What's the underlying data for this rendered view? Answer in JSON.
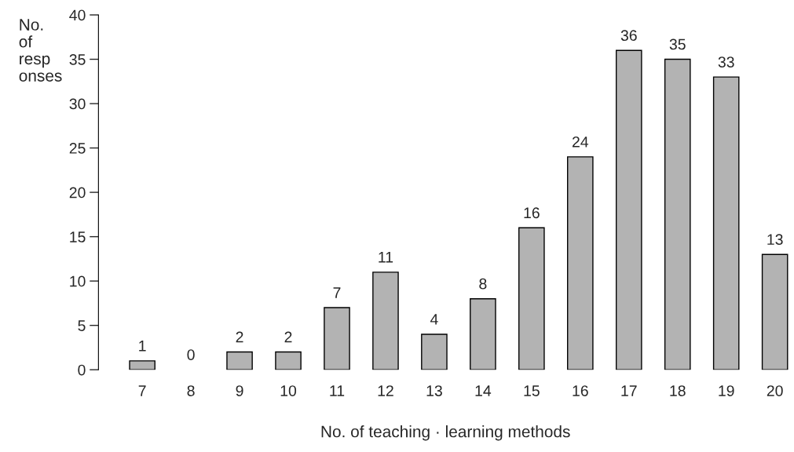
{
  "chart_data": {
    "type": "bar",
    "xlabel": "No. of teaching · learning methods",
    "ylabel": "No.\nof\nresp\nonses",
    "categories": [
      "7",
      "8",
      "9",
      "10",
      "11",
      "12",
      "13",
      "14",
      "15",
      "16",
      "17",
      "18",
      "19",
      "20"
    ],
    "values": [
      1,
      0,
      2,
      2,
      7,
      11,
      4,
      8,
      16,
      24,
      36,
      35,
      33,
      13
    ],
    "color": "#b3b3b3",
    "ylim": [
      0,
      40
    ],
    "yticks": [
      0,
      5,
      10,
      15,
      20,
      25,
      30,
      35,
      40
    ],
    "grid": false,
    "data_labels": true
  }
}
